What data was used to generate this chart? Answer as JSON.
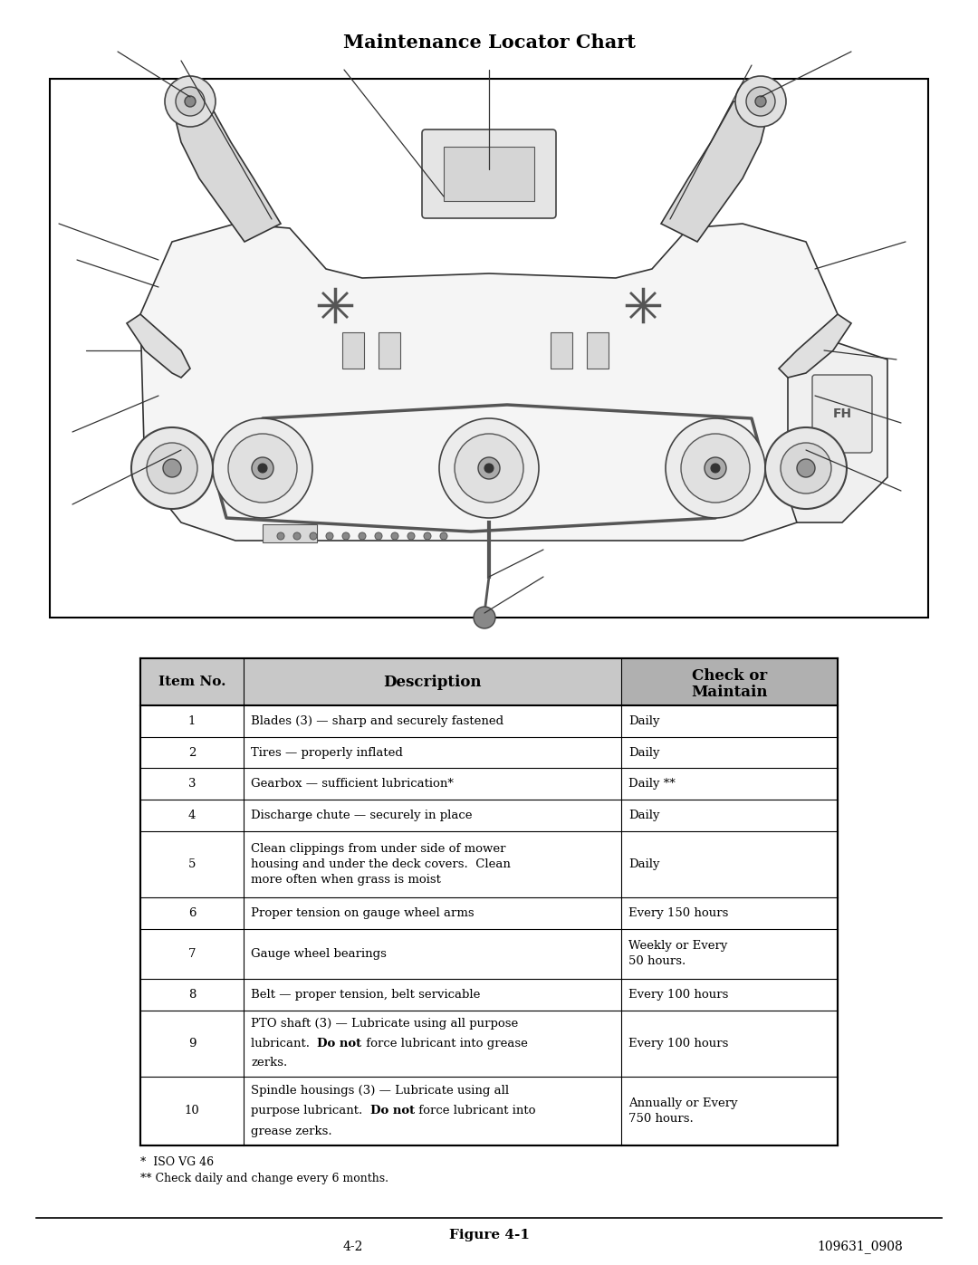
{
  "title": "Maintenance Locator Chart",
  "figure_label": "Figure 4-1",
  "page_number": "4-2",
  "doc_number": "109631_0908",
  "footnote1": "*  ISO VG 46",
  "footnote2": "** Check daily and change every 6 months.",
  "table_rows": [
    [
      "1",
      "Blades (3) — sharp and securely fastened",
      "Daily"
    ],
    [
      "2",
      "Tires — properly inflated",
      "Daily"
    ],
    [
      "3",
      "Gearbox — sufficient lubrication*",
      "Daily **"
    ],
    [
      "4",
      "Discharge chute — securely in place",
      "Daily"
    ],
    [
      "5",
      "Clean clippings from under side of mower\nhousing and under the deck covers.  Clean\nmore often when grass is moist",
      "Daily"
    ],
    [
      "6",
      "Proper tension on gauge wheel arms",
      "Every 150 hours"
    ],
    [
      "7",
      "Gauge wheel bearings",
      "Weekly or Every\n50 hours."
    ],
    [
      "8",
      "Belt — proper tension, belt servicable",
      "Every 100 hours"
    ],
    [
      "9",
      "PTO shaft (3) — Lubricate using all purpose\nlubricant.  Do not force lubricant into grease\nzerks.",
      "Every 100 hours"
    ],
    [
      "10",
      "Spindle housings (3) — Lubricate using all\npurpose lubricant.  Do not force lubricant into\ngrease zerks.",
      "Annually or Every\n750 hours."
    ]
  ],
  "background_color": "#ffffff"
}
